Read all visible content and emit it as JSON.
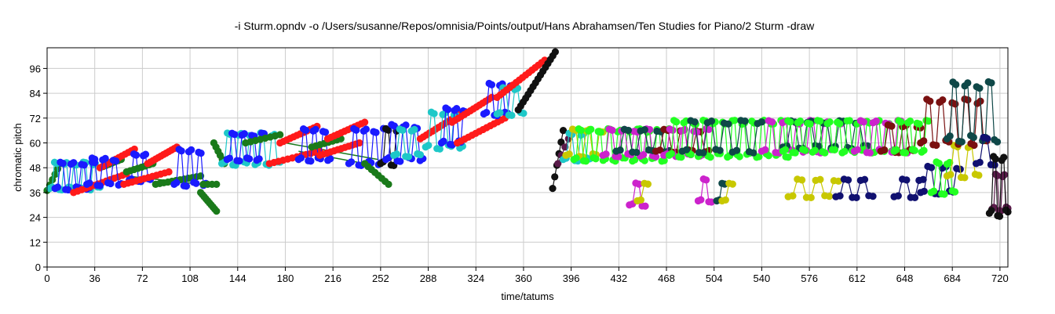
{
  "chart_data": {
    "type": "scatter",
    "title": "-i Sturm.opndv -o /Users/susanne/Repos/omnisia/Points/output/Hans Abrahamsen/Ten Studies for Piano/2 Sturm -draw",
    "xlabel": "time/tatums",
    "ylabel": "chromatic pitch",
    "xlim": [
      0,
      726
    ],
    "ylim": [
      0,
      106
    ],
    "xticks": [
      0,
      36,
      72,
      108,
      144,
      180,
      216,
      252,
      288,
      324,
      360,
      396,
      432,
      468,
      504,
      540,
      576,
      612,
      648,
      684,
      720
    ],
    "yticks": [
      0,
      12,
      24,
      36,
      48,
      60,
      72,
      84,
      96
    ],
    "grid": true,
    "legend": "none",
    "colors": {
      "green": "#1a7a1a",
      "cyan": "#1ec8c8",
      "blue": "#1a1aff",
      "red": "#ff1a1a",
      "black": "#111111",
      "lime": "#22ff22",
      "magenta": "#cc22cc",
      "maroon": "#7a1010",
      "darkteal": "#0f4848",
      "olive": "#c8c800",
      "navy": "#101070",
      "purple": "#5a1a4a"
    },
    "segments": [
      {
        "color": "green",
        "x0": 0,
        "x1": 10,
        "y0": 37,
        "y1": 50,
        "n": 6,
        "pattern": "single"
      },
      {
        "color": "cyan",
        "x0": 2,
        "x1": 40,
        "y0": 38,
        "y1": 50,
        "n": 22,
        "pattern": "zigzag"
      },
      {
        "color": "blue",
        "x0": 6,
        "x1": 36,
        "y0": 38,
        "y1": 50,
        "n": 16,
        "pattern": "zigzag"
      },
      {
        "color": "green",
        "x0": 40,
        "x1": 56,
        "y0": 48,
        "y1": 52,
        "n": 8,
        "pattern": "single"
      },
      {
        "color": "red",
        "x0": 40,
        "x1": 66,
        "y0": 48,
        "y1": 57,
        "n": 12,
        "pattern": "single"
      },
      {
        "color": "red",
        "x0": 20,
        "x1": 60,
        "y0": 36,
        "y1": 45,
        "n": 14,
        "pattern": "single"
      },
      {
        "color": "blue",
        "x0": 30,
        "x1": 56,
        "y0": 40,
        "y1": 52,
        "n": 14,
        "pattern": "zigzag"
      },
      {
        "color": "blue",
        "x0": 62,
        "x1": 78,
        "y0": 42,
        "y1": 54,
        "n": 10,
        "pattern": "zigzag"
      },
      {
        "color": "green",
        "x0": 60,
        "x1": 80,
        "y0": 46,
        "y1": 50,
        "n": 8,
        "pattern": "single"
      },
      {
        "color": "red",
        "x0": 76,
        "x1": 98,
        "y0": 50,
        "y1": 58,
        "n": 12,
        "pattern": "single"
      },
      {
        "color": "red",
        "x0": 58,
        "x1": 92,
        "y0": 40,
        "y1": 46,
        "n": 12,
        "pattern": "single"
      },
      {
        "color": "green",
        "x0": 82,
        "x1": 116,
        "y0": 40,
        "y1": 44,
        "n": 12,
        "pattern": "single"
      },
      {
        "color": "blue",
        "x0": 96,
        "x1": 120,
        "y0": 40,
        "y1": 56,
        "n": 14,
        "pattern": "zigzag"
      },
      {
        "color": "green",
        "x0": 116,
        "x1": 128,
        "y0": 36,
        "y1": 27,
        "n": 10,
        "pattern": "single"
      },
      {
        "color": "green",
        "x0": 118,
        "x1": 128,
        "y0": 40,
        "y1": 40,
        "n": 4,
        "pattern": "single"
      },
      {
        "color": "green",
        "x0": 126,
        "x1": 134,
        "y0": 60,
        "y1": 50,
        "n": 6,
        "pattern": "single"
      },
      {
        "color": "cyan",
        "x0": 132,
        "x1": 176,
        "y0": 50,
        "y1": 64,
        "n": 22,
        "pattern": "zigzag"
      },
      {
        "color": "blue",
        "x0": 136,
        "x1": 164,
        "y0": 52,
        "y1": 64,
        "n": 16,
        "pattern": "zigzag"
      },
      {
        "color": "green",
        "x0": 150,
        "x1": 176,
        "y0": 60,
        "y1": 64,
        "n": 8,
        "pattern": "single"
      },
      {
        "color": "red",
        "x0": 176,
        "x1": 204,
        "y0": 60,
        "y1": 68,
        "n": 12,
        "pattern": "single"
      },
      {
        "color": "red",
        "x0": 168,
        "x1": 206,
        "y0": 50,
        "y1": 56,
        "n": 12,
        "pattern": "single"
      },
      {
        "color": "blue",
        "x0": 190,
        "x1": 214,
        "y0": 52,
        "y1": 66,
        "n": 14,
        "pattern": "zigzag"
      },
      {
        "color": "green",
        "x0": 200,
        "x1": 222,
        "y0": 58,
        "y1": 62,
        "n": 8,
        "pattern": "single"
      },
      {
        "color": "red",
        "x0": 212,
        "x1": 240,
        "y0": 62,
        "y1": 70,
        "n": 12,
        "pattern": "single"
      },
      {
        "color": "red",
        "x0": 206,
        "x1": 236,
        "y0": 54,
        "y1": 60,
        "n": 12,
        "pattern": "single"
      },
      {
        "color": "blue",
        "x0": 228,
        "x1": 256,
        "y0": 50,
        "y1": 66,
        "n": 16,
        "pattern": "zigzag"
      },
      {
        "color": "green",
        "x0": 240,
        "x1": 258,
        "y0": 50,
        "y1": 40,
        "n": 8,
        "pattern": "single"
      },
      {
        "color": "black",
        "x0": 252,
        "x1": 266,
        "y0": 50,
        "y1": 66,
        "n": 8,
        "pattern": "zigzag"
      },
      {
        "color": "blue",
        "x0": 256,
        "x1": 284,
        "y0": 52,
        "y1": 68,
        "n": 14,
        "pattern": "zigzag"
      },
      {
        "color": "cyan",
        "x0": 262,
        "x1": 282,
        "y0": 54,
        "y1": 66,
        "n": 10,
        "pattern": "zigzag"
      },
      {
        "color": "red",
        "x0": 282,
        "x1": 312,
        "y0": 62,
        "y1": 74,
        "n": 14,
        "pattern": "single"
      },
      {
        "color": "cyan",
        "x0": 286,
        "x1": 314,
        "y0": 58,
        "y1": 74,
        "n": 14,
        "pattern": "zigzag"
      },
      {
        "color": "blue",
        "x0": 298,
        "x1": 316,
        "y0": 60,
        "y1": 76,
        "n": 12,
        "pattern": "zigzag"
      },
      {
        "color": "red",
        "x0": 306,
        "x1": 336,
        "y0": 70,
        "y1": 82,
        "n": 14,
        "pattern": "single"
      },
      {
        "color": "red",
        "x0": 310,
        "x1": 346,
        "y0": 60,
        "y1": 72,
        "n": 14,
        "pattern": "single"
      },
      {
        "color": "blue",
        "x0": 330,
        "x1": 352,
        "y0": 74,
        "y1": 88,
        "n": 12,
        "pattern": "zigzag"
      },
      {
        "color": "cyan",
        "x0": 340,
        "x1": 360,
        "y0": 74,
        "y1": 86,
        "n": 10,
        "pattern": "zigzag"
      },
      {
        "color": "red",
        "x0": 340,
        "x1": 376,
        "y0": 82,
        "y1": 100,
        "n": 16,
        "pattern": "single"
      },
      {
        "color": "black",
        "x0": 356,
        "x1": 384,
        "y0": 76,
        "y1": 104,
        "n": 16,
        "pattern": "single"
      },
      {
        "color": "black",
        "x0": 382,
        "x1": 390,
        "y0": 38,
        "y1": 66,
        "n": 6,
        "pattern": "single"
      },
      {
        "color": "purple",
        "x0": 386,
        "x1": 394,
        "y0": 50,
        "y1": 62,
        "n": 4,
        "pattern": "single"
      },
      {
        "color": "cyan",
        "x0": 390,
        "x1": 410,
        "y0": 52,
        "y1": 64,
        "n": 10,
        "pattern": "zigzag"
      },
      {
        "color": "olive",
        "x0": 392,
        "x1": 420,
        "y0": 54,
        "y1": 66,
        "n": 12,
        "pattern": "zigzag"
      },
      {
        "color": "lime",
        "x0": 398,
        "x1": 470,
        "y0": 52,
        "y1": 66,
        "n": 40,
        "pattern": "zigzag"
      },
      {
        "color": "magenta",
        "x0": 420,
        "x1": 460,
        "y0": 54,
        "y1": 66,
        "n": 18,
        "pattern": "zigzag"
      },
      {
        "color": "darkteal",
        "x0": 430,
        "x1": 470,
        "y0": 56,
        "y1": 66,
        "n": 14,
        "pattern": "zigzag"
      },
      {
        "color": "magenta",
        "x0": 440,
        "x1": 452,
        "y0": 30,
        "y1": 40,
        "n": 6,
        "pattern": "zigzag"
      },
      {
        "color": "olive",
        "x0": 446,
        "x1": 454,
        "y0": 32,
        "y1": 40,
        "n": 4,
        "pattern": "zigzag"
      },
      {
        "color": "maroon",
        "x0": 460,
        "x1": 500,
        "y0": 56,
        "y1": 66,
        "n": 14,
        "pattern": "zigzag"
      },
      {
        "color": "magenta",
        "x0": 466,
        "x1": 500,
        "y0": 54,
        "y1": 66,
        "n": 16,
        "pattern": "zigzag"
      },
      {
        "color": "lime",
        "x0": 470,
        "x1": 560,
        "y0": 54,
        "y1": 70,
        "n": 50,
        "pattern": "zigzag"
      },
      {
        "color": "darkteal",
        "x0": 480,
        "x1": 540,
        "y0": 56,
        "y1": 70,
        "n": 20,
        "pattern": "zigzag"
      },
      {
        "color": "magenta",
        "x0": 492,
        "x1": 502,
        "y0": 32,
        "y1": 42,
        "n": 6,
        "pattern": "zigzag"
      },
      {
        "color": "darkteal",
        "x0": 506,
        "x1": 512,
        "y0": 32,
        "y1": 40,
        "n": 4,
        "pattern": "zigzag"
      },
      {
        "color": "olive",
        "x0": 510,
        "x1": 518,
        "y0": 32,
        "y1": 40,
        "n": 4,
        "pattern": "zigzag"
      },
      {
        "color": "magenta",
        "x0": 540,
        "x1": 600,
        "y0": 56,
        "y1": 70,
        "n": 24,
        "pattern": "zigzag"
      },
      {
        "color": "darkteal",
        "x0": 556,
        "x1": 620,
        "y0": 58,
        "y1": 70,
        "n": 22,
        "pattern": "zigzag"
      },
      {
        "color": "lime",
        "x0": 556,
        "x1": 640,
        "y0": 56,
        "y1": 70,
        "n": 46,
        "pattern": "zigzag"
      },
      {
        "color": "olive",
        "x0": 560,
        "x1": 598,
        "y0": 34,
        "y1": 42,
        "n": 12,
        "pattern": "zigzag"
      },
      {
        "color": "navy",
        "x0": 596,
        "x1": 624,
        "y0": 34,
        "y1": 42,
        "n": 10,
        "pattern": "zigzag"
      },
      {
        "color": "magenta",
        "x0": 610,
        "x1": 650,
        "y0": 56,
        "y1": 70,
        "n": 18,
        "pattern": "zigzag"
      },
      {
        "color": "maroon",
        "x0": 630,
        "x1": 660,
        "y0": 56,
        "y1": 68,
        "n": 12,
        "pattern": "zigzag"
      },
      {
        "color": "lime",
        "x0": 640,
        "x1": 666,
        "y0": 56,
        "y1": 70,
        "n": 16,
        "pattern": "zigzag"
      },
      {
        "color": "navy",
        "x0": 640,
        "x1": 662,
        "y0": 34,
        "y1": 42,
        "n": 8,
        "pattern": "zigzag"
      },
      {
        "color": "navy",
        "x0": 660,
        "x1": 690,
        "y0": 36,
        "y1": 48,
        "n": 12,
        "pattern": "zigzag"
      },
      {
        "color": "lime",
        "x0": 668,
        "x1": 686,
        "y0": 36,
        "y1": 50,
        "n": 10,
        "pattern": "zigzag"
      },
      {
        "color": "olive",
        "x0": 680,
        "x1": 704,
        "y0": 44,
        "y1": 58,
        "n": 10,
        "pattern": "zigzag"
      },
      {
        "color": "maroon",
        "x0": 660,
        "x1": 710,
        "y0": 60,
        "y1": 80,
        "n": 22,
        "pattern": "zigzag"
      },
      {
        "color": "darkteal",
        "x0": 680,
        "x1": 718,
        "y0": 62,
        "y1": 88,
        "n": 18,
        "pattern": "zigzag"
      },
      {
        "color": "navy",
        "x0": 702,
        "x1": 716,
        "y0": 50,
        "y1": 62,
        "n": 6,
        "pattern": "zigzag"
      },
      {
        "color": "purple",
        "x0": 714,
        "x1": 726,
        "y0": 28,
        "y1": 44,
        "n": 10,
        "pattern": "zigzag"
      },
      {
        "color": "black",
        "x0": 712,
        "x1": 726,
        "y0": 26,
        "y1": 52,
        "n": 10,
        "pattern": "zigzag"
      }
    ],
    "links": [
      {
        "color": "green",
        "x0": 60,
        "x1": 116,
        "y0": 44,
        "y1": 40
      },
      {
        "color": "green",
        "x0": 180,
        "x1": 250,
        "y0": 60,
        "y1": 52
      },
      {
        "color": "green",
        "x0": 190,
        "x1": 240,
        "y0": 56,
        "y1": 50
      }
    ]
  }
}
